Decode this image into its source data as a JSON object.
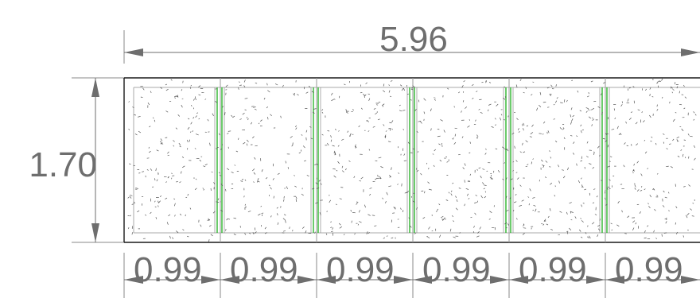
{
  "dimensions": {
    "overall_width": "5.96",
    "height": "1.70",
    "segments": [
      "0.99",
      "0.99",
      "0.99",
      "0.99",
      "0.99",
      "0.99"
    ]
  },
  "colors": {
    "dimension_line": "#6e6e6e",
    "dimension_text": "#6e6e6e",
    "outline": "#1a1a1a",
    "panel_edge": "#9a9a9a",
    "stud": "#2db52d",
    "stipple": "#555555"
  }
}
